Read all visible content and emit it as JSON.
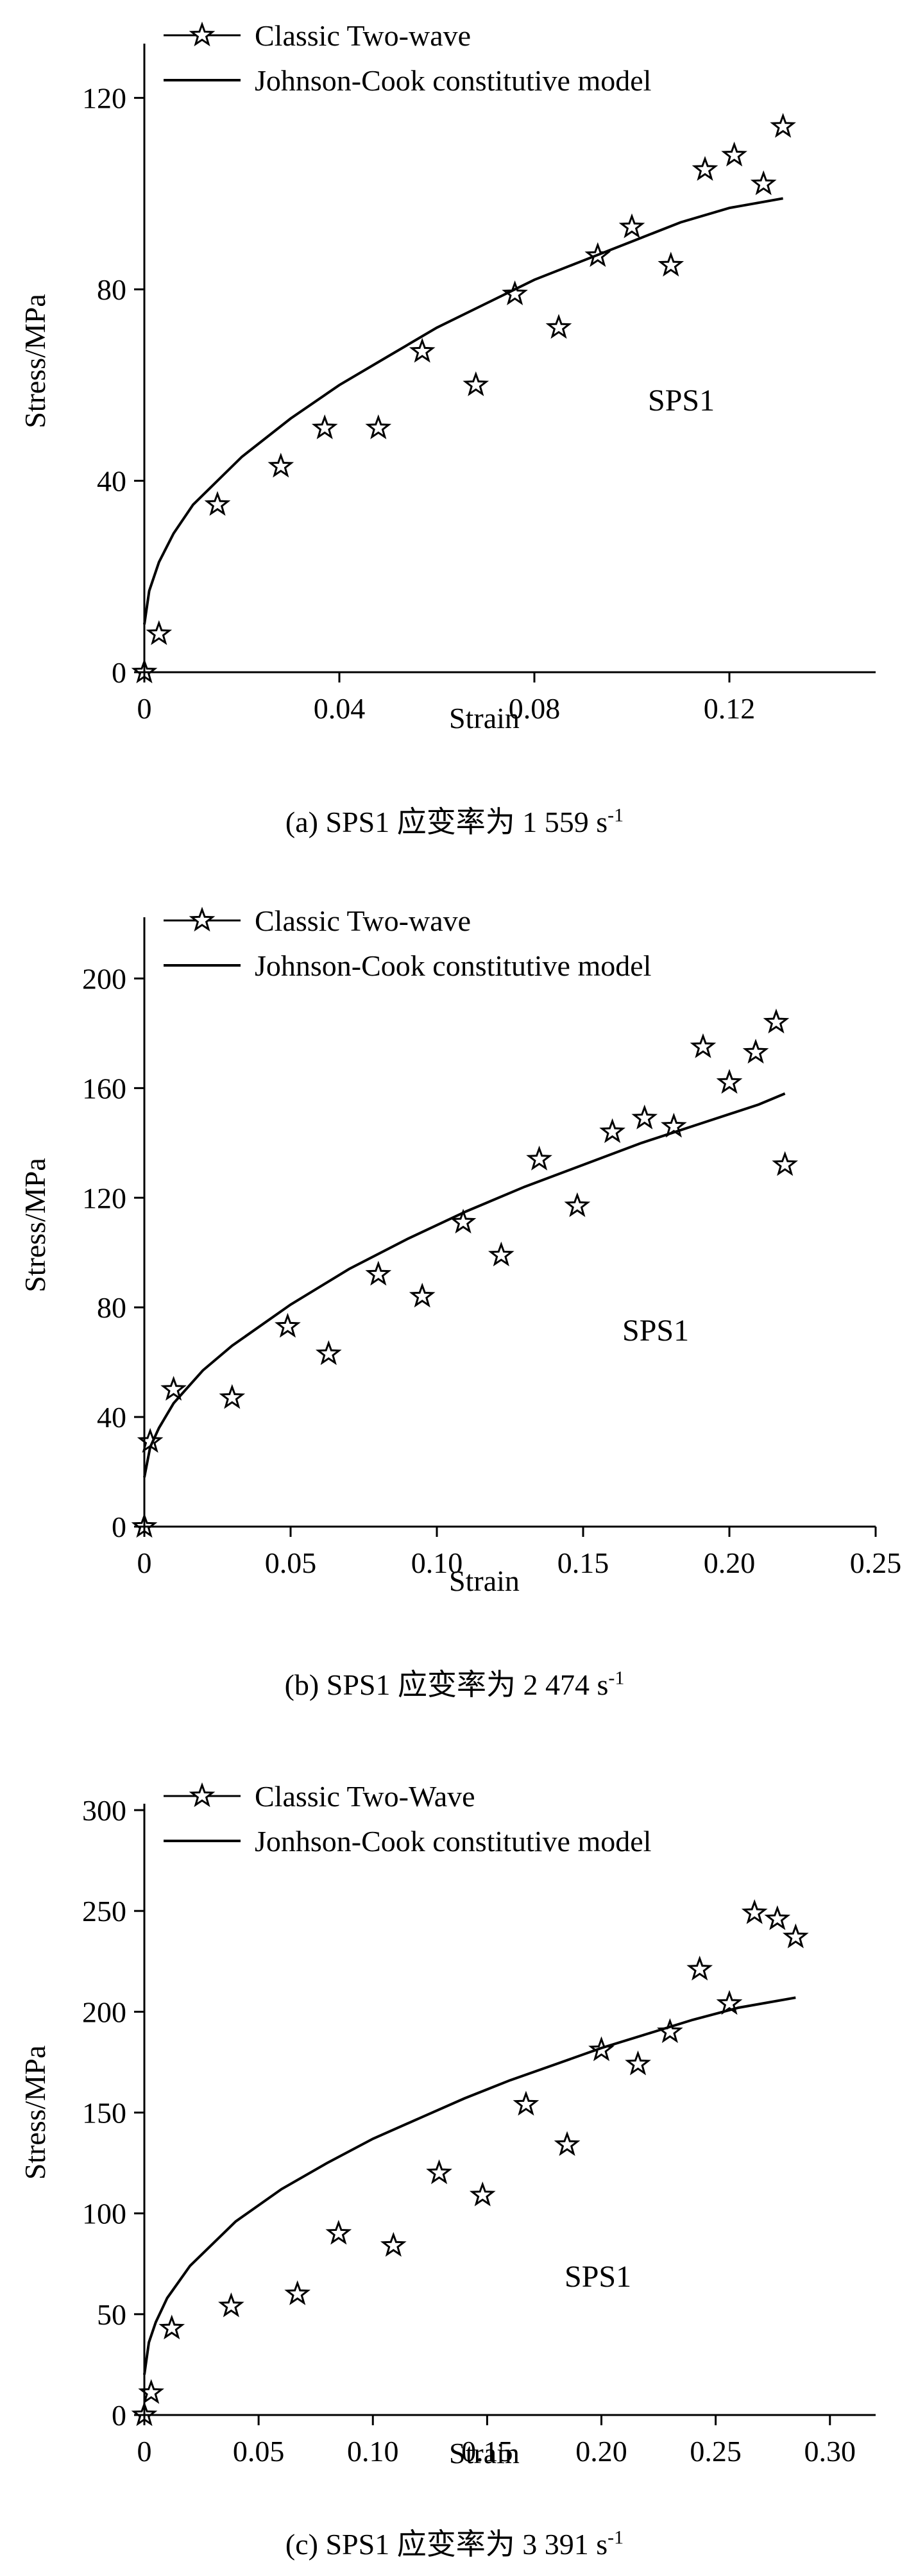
{
  "chart_data": [
    {
      "type": "scatter",
      "caption": {
        "prefix": "(a) SPS1 应变率为 1 559 s",
        "sup": "-1"
      },
      "xlabel": "Strain",
      "ylabel": "Stress/MPa",
      "xlim": [
        0,
        0.15
      ],
      "ylim": [
        0,
        130
      ],
      "xticks": [
        0,
        0.04,
        0.08,
        0.12
      ],
      "xtick_labels": [
        "0",
        "0.04",
        "0.08",
        "0.12"
      ],
      "yticks": [
        0,
        40,
        80,
        120
      ],
      "ytick_labels": [
        "0",
        "40",
        "80",
        "120"
      ],
      "annotation": "SPS1",
      "legend_position": "top-left",
      "grid": false,
      "series": [
        {
          "name": "Classic Two-wave",
          "kind": "scatter",
          "marker": "star",
          "x": [
            0.0,
            0.003,
            0.015,
            0.028,
            0.037,
            0.048,
            0.057,
            0.068,
            0.076,
            0.085,
            0.093,
            0.1,
            0.108,
            0.115,
            0.121,
            0.127,
            0.131
          ],
          "y": [
            0,
            8,
            35,
            43,
            51,
            51,
            67,
            60,
            79,
            72,
            87,
            93,
            85,
            105,
            108,
            102,
            114
          ]
        },
        {
          "name": "Johnson-Cook constitutive model",
          "kind": "line",
          "x": [
            0.0,
            0.001,
            0.003,
            0.006,
            0.01,
            0.015,
            0.02,
            0.03,
            0.04,
            0.05,
            0.06,
            0.07,
            0.08,
            0.09,
            0.1,
            0.11,
            0.12,
            0.131
          ],
          "y": [
            10,
            17,
            23,
            29,
            35,
            40,
            45,
            53,
            60,
            66,
            72,
            77,
            82,
            86,
            90,
            94,
            97,
            99
          ]
        }
      ]
    },
    {
      "type": "scatter",
      "caption": {
        "prefix": "(b) SPS1 应变率为 2 474 s",
        "sup": "-1"
      },
      "xlabel": "Strain",
      "ylabel": "Stress/MPa",
      "xlim": [
        0,
        0.25
      ],
      "ylim": [
        0,
        220
      ],
      "xticks": [
        0,
        0.05,
        0.1,
        0.15,
        0.2,
        0.25
      ],
      "xtick_labels": [
        "0",
        "0.05",
        "0.10",
        "0.15",
        "0.20",
        "0.25"
      ],
      "yticks": [
        0,
        40,
        80,
        120,
        160,
        200
      ],
      "ytick_labels": [
        "0",
        "40",
        "80",
        "120",
        "160",
        "200"
      ],
      "annotation": "SPS1",
      "legend_position": "top-left",
      "grid": false,
      "series": [
        {
          "name": "Classic Two-wave",
          "kind": "scatter",
          "marker": "star",
          "x": [
            0.0,
            0.002,
            0.01,
            0.03,
            0.049,
            0.063,
            0.08,
            0.095,
            0.109,
            0.122,
            0.135,
            0.148,
            0.16,
            0.171,
            0.181,
            0.191,
            0.2,
            0.209,
            0.216,
            0.219
          ],
          "y": [
            0,
            31,
            50,
            47,
            73,
            63,
            92,
            84,
            111,
            99,
            134,
            117,
            144,
            149,
            146,
            175,
            162,
            173,
            184,
            132
          ]
        },
        {
          "name": "Johnson-Cook constitutive model",
          "kind": "line",
          "x": [
            0.0,
            0.002,
            0.005,
            0.01,
            0.02,
            0.03,
            0.05,
            0.07,
            0.09,
            0.11,
            0.13,
            0.15,
            0.17,
            0.19,
            0.21,
            0.219
          ],
          "y": [
            18,
            29,
            36,
            45,
            57,
            66,
            81,
            94,
            105,
            115,
            124,
            132,
            140,
            147,
            154,
            158
          ]
        }
      ]
    },
    {
      "type": "scatter",
      "caption": {
        "prefix": "(c) SPS1 应变率为 3 391 s",
        "sup": "-1"
      },
      "xlabel": "Strain",
      "ylabel": "Stress/MPa",
      "xlim": [
        0,
        0.32
      ],
      "ylim": [
        0,
        300
      ],
      "xticks": [
        0,
        0.05,
        0.1,
        0.15,
        0.2,
        0.25,
        0.3
      ],
      "xtick_labels": [
        "0",
        "0.05",
        "0.10",
        "0.15",
        "0.20",
        "0.25",
        "0.30"
      ],
      "yticks": [
        0,
        50,
        100,
        150,
        200,
        250,
        300
      ],
      "ytick_labels": [
        "0",
        "50",
        "100",
        "150",
        "200",
        "250",
        "300"
      ],
      "annotation": "SPS1",
      "legend_position": "top-left",
      "grid": false,
      "series": [
        {
          "name": "Classic Two-Wave",
          "kind": "scatter",
          "marker": "star",
          "x": [
            0.0,
            0.003,
            0.012,
            0.038,
            0.067,
            0.085,
            0.109,
            0.129,
            0.148,
            0.167,
            0.185,
            0.2,
            0.216,
            0.23,
            0.243,
            0.256,
            0.267,
            0.277,
            0.285
          ],
          "y": [
            0,
            11,
            43,
            54,
            60,
            90,
            84,
            120,
            109,
            154,
            134,
            181,
            174,
            190,
            221,
            204,
            249,
            246,
            237
          ]
        },
        {
          "name": "Jonhson-Cook constitutive model",
          "kind": "line",
          "x": [
            0.0,
            0.002,
            0.005,
            0.01,
            0.02,
            0.04,
            0.06,
            0.08,
            0.1,
            0.12,
            0.14,
            0.16,
            0.18,
            0.2,
            0.22,
            0.24,
            0.26,
            0.285
          ],
          "y": [
            20,
            36,
            46,
            58,
            74,
            96,
            112,
            125,
            137,
            147,
            157,
            166,
            174,
            182,
            189,
            196,
            202,
            207
          ]
        }
      ]
    }
  ]
}
